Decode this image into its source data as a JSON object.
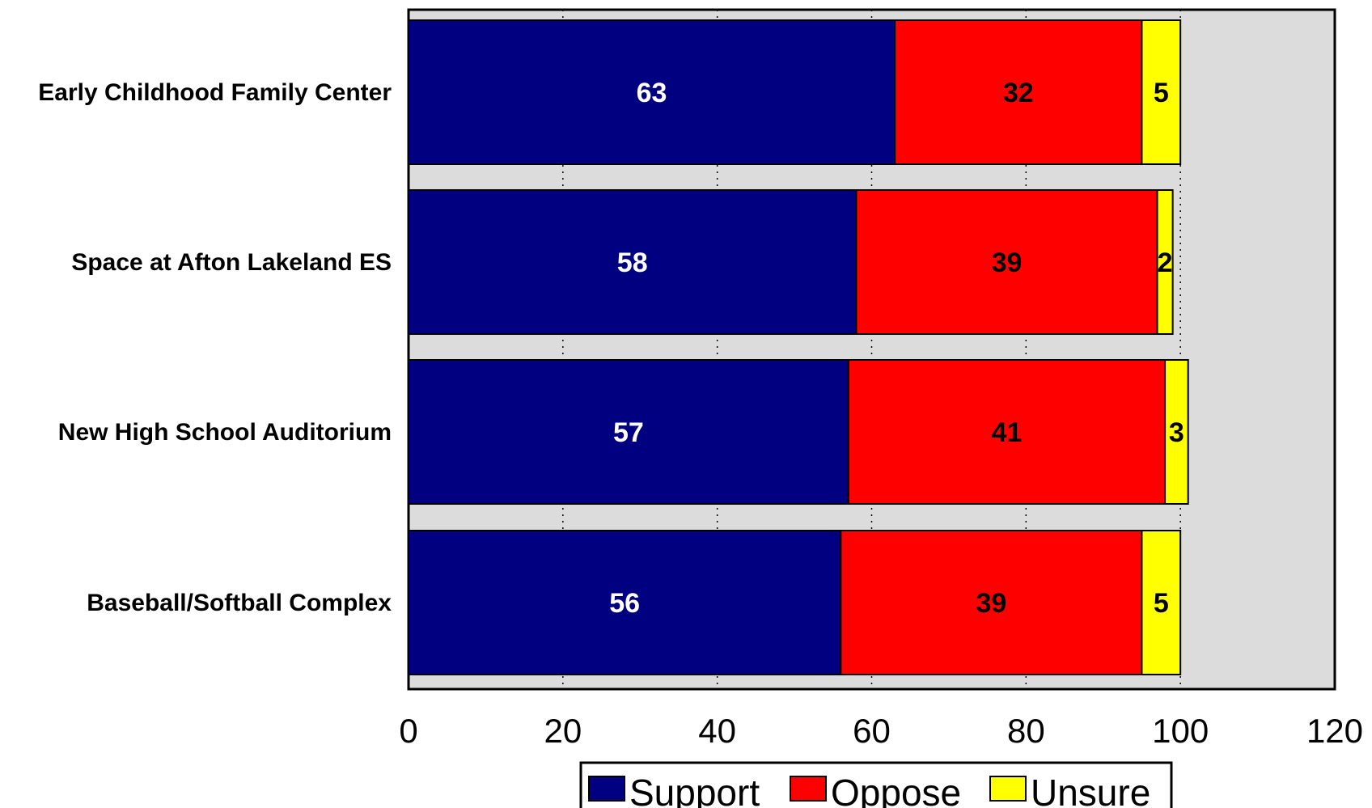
{
  "chart_data": {
    "type": "bar",
    "orientation": "horizontal",
    "stacked": true,
    "categories": [
      "Early Childhood Family Center",
      "Space at Afton Lakeland ES",
      "New High School Auditorium",
      "Baseball/Softball Complex"
    ],
    "series": [
      {
        "name": "Support",
        "color": "#000080",
        "label_color": "#ffffff",
        "values": [
          63,
          58,
          57,
          56
        ]
      },
      {
        "name": "Oppose",
        "color": "#ff0000",
        "label_color": "#000000",
        "values": [
          32,
          39,
          41,
          39
        ]
      },
      {
        "name": "Unsure",
        "color": "#ffff00",
        "label_color": "#000000",
        "values": [
          5,
          2,
          3,
          5
        ]
      }
    ],
    "xlim": [
      0,
      120
    ],
    "xticks": [
      0,
      20,
      40,
      60,
      80,
      100,
      120
    ],
    "grid": "vertical dotted",
    "plot_background": "#dcdcdc",
    "legend": "bottom-center"
  }
}
